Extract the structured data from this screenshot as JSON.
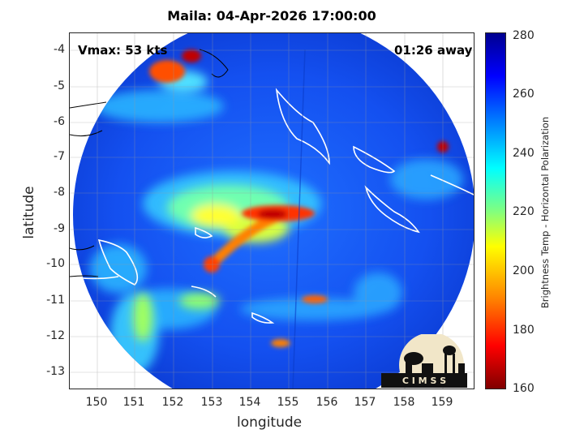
{
  "title": "Maila: 04-Apr-2026 17:00:00",
  "vmax_label": "Vmax: 53 kts",
  "time_label": "01:26 away",
  "xaxis": {
    "label": "longitude",
    "ticks": [
      "150",
      "151",
      "152",
      "153",
      "154",
      "155",
      "156",
      "157",
      "158",
      "159"
    ]
  },
  "yaxis": {
    "label": "latitude",
    "ticks": [
      "-4",
      "-5",
      "-6",
      "-7",
      "-8",
      "-9",
      "-10",
      "-11",
      "-12",
      "-13"
    ]
  },
  "colorbar": {
    "label": "Brightness Temp - Horizontal Polarization",
    "ticks": [
      "280",
      "260",
      "240",
      "220",
      "200",
      "180",
      "160"
    ]
  },
  "logo_text": "C I M S S",
  "colors": {
    "cold": "#00008f",
    "warm": "#800000",
    "coast": "#ffffff"
  }
}
